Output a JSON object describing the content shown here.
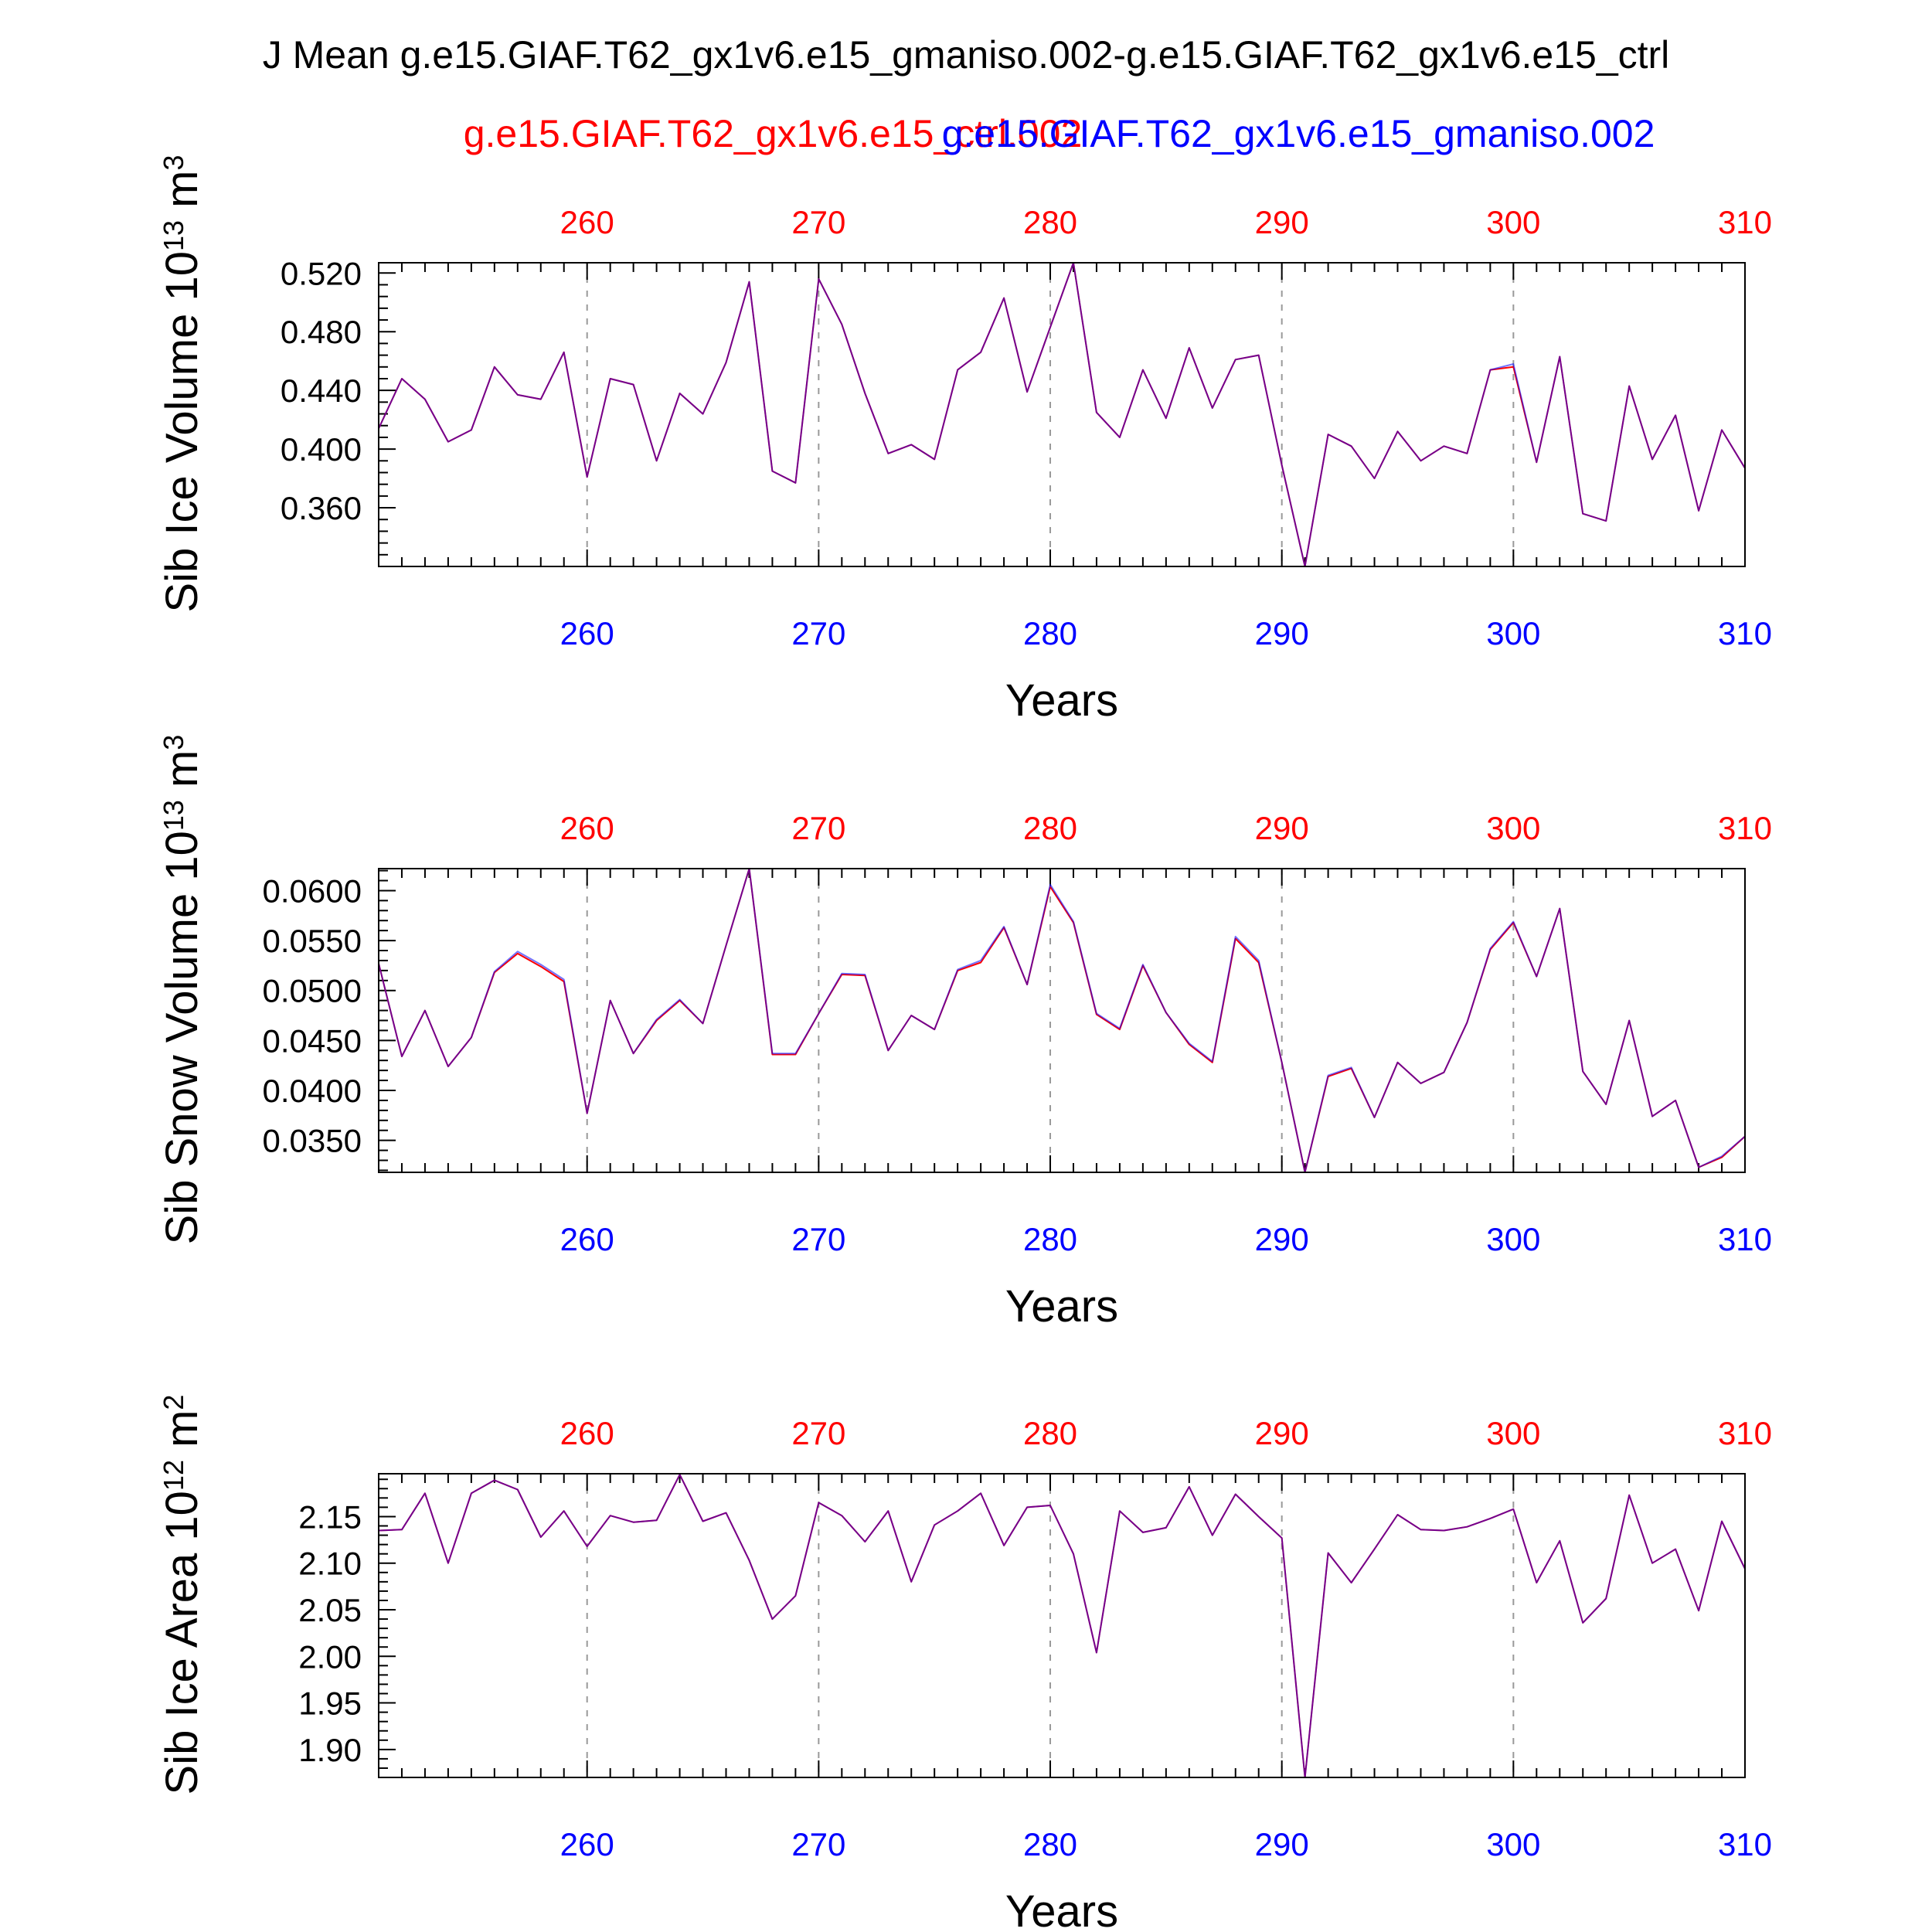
{
  "figure": {
    "title": "J Mean g.e15.GIAF.T62_gx1v6.e15_gmaniso.002-g.e15.GIAF.T62_gx1v6.e15_ctrl",
    "case_top": "g.e15.GIAF.T62_gx1v6.e15_ctrl.002",
    "case_bottom": "g.e15.GIAF.T62_gx1v6.e15_gmaniso.002",
    "colors": {
      "top_axis": "#ff0000",
      "bottom_axis": "#0000ff",
      "series_a": "#ff0000",
      "series_b": "#0000ff",
      "grid": "#999999"
    }
  },
  "chart_data": [
    {
      "type": "line",
      "xlabel": "Years",
      "ylabel": "Sib Ice Volume 10",
      "ylabel_exp": "13",
      "ylabel_unit": " m",
      "ylabel_unit_exp": "3",
      "xlim": [
        251,
        310
      ],
      "ylim": [
        0.32,
        0.527
      ],
      "xticks": [
        260,
        270,
        280,
        290,
        300,
        310
      ],
      "yticks": [
        "0.360",
        "0.400",
        "0.440",
        "0.480",
        "0.520"
      ],
      "ytick_values": [
        0.36,
        0.4,
        0.44,
        0.48,
        0.52
      ],
      "yminor": 0.008,
      "grid_x": true,
      "x": [
        251,
        252,
        253,
        254,
        255,
        256,
        257,
        258,
        259,
        260,
        261,
        262,
        263,
        264,
        265,
        266,
        267,
        268,
        269,
        270,
        271,
        272,
        273,
        274,
        275,
        276,
        277,
        278,
        279,
        280,
        281,
        282,
        283,
        284,
        285,
        286,
        287,
        288,
        289,
        290,
        291,
        292,
        293,
        294,
        295,
        296,
        297,
        298,
        299,
        300,
        301,
        302,
        303,
        304,
        305,
        306,
        307,
        308,
        309,
        310
      ],
      "series": [
        {
          "values": [
            0.414,
            0.448,
            0.434,
            0.405,
            0.413,
            0.456,
            0.437,
            0.434,
            0.466,
            0.381,
            0.448,
            0.444,
            0.392,
            0.438,
            0.424,
            0.459,
            0.514,
            0.385,
            0.377,
            0.516,
            0.485,
            0.438,
            0.397,
            0.403,
            0.393,
            0.454,
            0.466,
            0.503,
            0.439,
            0.483,
            0.527,
            0.425,
            0.408,
            0.454,
            0.421,
            0.469,
            0.428,
            0.461,
            0.464,
            0.389,
            0.32,
            0.41,
            0.402,
            0.38,
            0.412,
            0.392,
            0.402,
            0.397,
            0.454,
            0.456,
            0.391,
            0.463,
            0.356,
            0.351,
            0.443,
            0.393,
            0.423,
            0.358,
            0.413,
            0.387
          ]
        },
        {
          "values": [
            0.414,
            0.448,
            0.434,
            0.405,
            0.413,
            0.456,
            0.437,
            0.434,
            0.466,
            0.381,
            0.448,
            0.444,
            0.392,
            0.438,
            0.424,
            0.459,
            0.514,
            0.385,
            0.377,
            0.516,
            0.485,
            0.438,
            0.397,
            0.403,
            0.393,
            0.454,
            0.466,
            0.503,
            0.439,
            0.483,
            0.527,
            0.425,
            0.408,
            0.454,
            0.421,
            0.469,
            0.428,
            0.461,
            0.464,
            0.389,
            0.32,
            0.41,
            0.402,
            0.38,
            0.412,
            0.392,
            0.402,
            0.397,
            0.454,
            0.458,
            0.391,
            0.463,
            0.356,
            0.351,
            0.443,
            0.393,
            0.423,
            0.358,
            0.413,
            0.387
          ]
        }
      ]
    },
    {
      "type": "line",
      "xlabel": "Years",
      "ylabel": "Sib Snow Volume 10",
      "ylabel_exp": "13",
      "ylabel_unit": " m",
      "ylabel_unit_exp": "3",
      "xlim": [
        251,
        310
      ],
      "ylim": [
        0.0318,
        0.0622
      ],
      "xticks": [
        260,
        270,
        280,
        290,
        300,
        310
      ],
      "yticks": [
        "0.0350",
        "0.0400",
        "0.0450",
        "0.0500",
        "0.0550",
        "0.0600"
      ],
      "ytick_values": [
        0.035,
        0.04,
        0.045,
        0.05,
        0.055,
        0.06
      ],
      "yminor": 0.001,
      "grid_x": true,
      "x": [
        251,
        252,
        253,
        254,
        255,
        256,
        257,
        258,
        259,
        260,
        261,
        262,
        263,
        264,
        265,
        266,
        267,
        268,
        269,
        270,
        271,
        272,
        273,
        274,
        275,
        276,
        277,
        278,
        279,
        280,
        281,
        282,
        283,
        284,
        285,
        286,
        287,
        288,
        289,
        290,
        291,
        292,
        293,
        294,
        295,
        296,
        297,
        298,
        299,
        300,
        301,
        302,
        303,
        304,
        305,
        306,
        307,
        308,
        309,
        310
      ],
      "series": [
        {
          "values": [
            0.0527,
            0.0434,
            0.048,
            0.0424,
            0.0453,
            0.0518,
            0.0537,
            0.0524,
            0.0509,
            0.0377,
            0.049,
            0.0437,
            0.047,
            0.049,
            0.0467,
            0.0545,
            0.0622,
            0.0436,
            0.0436,
            0.0477,
            0.0516,
            0.0515,
            0.044,
            0.0475,
            0.0461,
            0.052,
            0.0528,
            0.0563,
            0.0506,
            0.0604,
            0.0568,
            0.0476,
            0.0461,
            0.0525,
            0.0478,
            0.0446,
            0.0428,
            0.0552,
            0.0528,
            0.0428,
            0.0318,
            0.0414,
            0.0422,
            0.0373,
            0.0428,
            0.0407,
            0.0418,
            0.0468,
            0.0541,
            0.0568,
            0.0514,
            0.0582,
            0.0419,
            0.0386,
            0.047,
            0.0374,
            0.039,
            0.0323,
            0.0333,
            0.0354
          ]
        },
        {
          "values": [
            0.0527,
            0.0434,
            0.048,
            0.0424,
            0.0453,
            0.0519,
            0.0539,
            0.0526,
            0.0511,
            0.0377,
            0.049,
            0.0437,
            0.0471,
            0.0491,
            0.0467,
            0.0545,
            0.0622,
            0.0437,
            0.0437,
            0.0477,
            0.0517,
            0.0516,
            0.044,
            0.0475,
            0.0461,
            0.0521,
            0.053,
            0.0564,
            0.0506,
            0.0606,
            0.0569,
            0.0477,
            0.0462,
            0.0526,
            0.0478,
            0.0447,
            0.0429,
            0.0554,
            0.053,
            0.0428,
            0.0318,
            0.0415,
            0.0423,
            0.0373,
            0.0428,
            0.0407,
            0.0418,
            0.0468,
            0.0542,
            0.0569,
            0.0514,
            0.0582,
            0.0419,
            0.0386,
            0.047,
            0.0374,
            0.039,
            0.0323,
            0.0334,
            0.0354
          ]
        }
      ]
    },
    {
      "type": "line",
      "xlabel": "Years",
      "ylabel": "Sib Ice Area 10",
      "ylabel_exp": "12",
      "ylabel_unit": " m",
      "ylabel_unit_exp": "2",
      "xlim": [
        251,
        310
      ],
      "ylim": [
        1.87,
        2.196
      ],
      "xticks": [
        260,
        270,
        280,
        290,
        300,
        310
      ],
      "yticks": [
        "1.90",
        "1.95",
        "2.00",
        "2.05",
        "2.10",
        "2.15"
      ],
      "ytick_values": [
        1.9,
        1.95,
        2.0,
        2.05,
        2.1,
        2.15
      ],
      "yminor": 0.01,
      "grid_x": true,
      "x": [
        251,
        252,
        253,
        254,
        255,
        256,
        257,
        258,
        259,
        260,
        261,
        262,
        263,
        264,
        265,
        266,
        267,
        268,
        269,
        270,
        271,
        272,
        273,
        274,
        275,
        276,
        277,
        278,
        279,
        280,
        281,
        282,
        283,
        284,
        285,
        286,
        287,
        288,
        289,
        290,
        291,
        292,
        293,
        294,
        295,
        296,
        297,
        298,
        299,
        300,
        301,
        302,
        303,
        304,
        305,
        306,
        307,
        308,
        309,
        310
      ],
      "series": [
        {
          "values": [
            2.135,
            2.136,
            2.175,
            2.1,
            2.175,
            2.189,
            2.179,
            2.128,
            2.156,
            2.118,
            2.151,
            2.144,
            2.146,
            2.195,
            2.145,
            2.154,
            2.103,
            2.04,
            2.065,
            2.165,
            2.151,
            2.123,
            2.156,
            2.08,
            2.141,
            2.156,
            2.175,
            2.119,
            2.16,
            2.162,
            2.11,
            2.004,
            2.156,
            2.133,
            2.138,
            2.182,
            2.13,
            2.174,
            2.15,
            2.127,
            1.87,
            2.111,
            2.079,
            2.115,
            2.152,
            2.136,
            2.135,
            2.139,
            2.148,
            2.158,
            2.079,
            2.124,
            2.036,
            2.062,
            2.173,
            2.1,
            2.115,
            2.049,
            2.145,
            2.094
          ]
        },
        {
          "values": [
            2.135,
            2.136,
            2.175,
            2.1,
            2.175,
            2.189,
            2.179,
            2.128,
            2.156,
            2.118,
            2.151,
            2.144,
            2.146,
            2.195,
            2.145,
            2.154,
            2.103,
            2.04,
            2.065,
            2.165,
            2.151,
            2.123,
            2.156,
            2.08,
            2.141,
            2.156,
            2.175,
            2.119,
            2.16,
            2.162,
            2.11,
            2.004,
            2.156,
            2.133,
            2.138,
            2.182,
            2.13,
            2.174,
            2.15,
            2.127,
            1.87,
            2.111,
            2.079,
            2.115,
            2.152,
            2.136,
            2.135,
            2.139,
            2.148,
            2.158,
            2.079,
            2.124,
            2.036,
            2.062,
            2.173,
            2.1,
            2.115,
            2.049,
            2.145,
            2.094
          ]
        }
      ]
    }
  ]
}
